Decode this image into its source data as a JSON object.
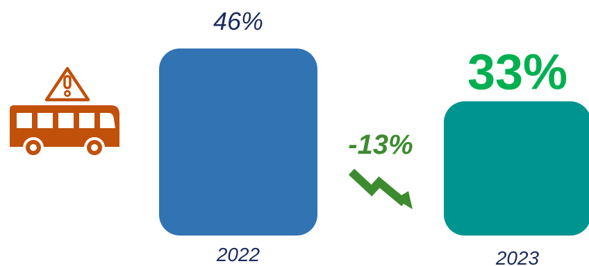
{
  "chart_data": {
    "type": "bar",
    "categories": [
      "2022",
      "2023"
    ],
    "values": [
      46,
      33
    ],
    "value_labels": [
      "46%",
      "33%"
    ],
    "change_label": "-13%",
    "title": "",
    "xlabel": "",
    "ylabel": "",
    "ylim": [
      0,
      46
    ],
    "grid": false,
    "colors": {
      "bar_2022": "#3273b3",
      "bar_2023": "#009490",
      "label_2022": "#1b2a5c",
      "label_2023": "#00b050",
      "category_label": "#1b2a5c",
      "change": "#3d8b2f",
      "bus_icon": "#c0500a"
    },
    "icons": [
      "bus-warning-icon",
      "trend-down-arrow-icon"
    ]
  }
}
